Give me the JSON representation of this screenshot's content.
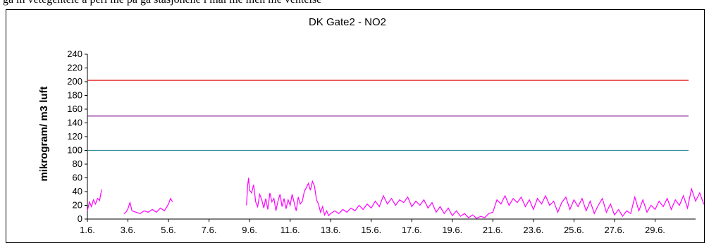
{
  "top_caption": "ga m vetegentele a peri me pa ga stasjonene i mai me men me ventelse",
  "chart_data": {
    "type": "line",
    "title": "DK Gate2 - NO2",
    "xlabel": "",
    "ylabel": "mikrogram/ m3 luft",
    "ylim": [
      0,
      240
    ],
    "yticks": [
      0,
      20,
      40,
      60,
      80,
      100,
      120,
      140,
      160,
      180,
      200,
      220,
      240
    ],
    "xlim": [
      1,
      31
    ],
    "xticks": [
      {
        "x": 1,
        "label": "1.6."
      },
      {
        "x": 3,
        "label": "3.6."
      },
      {
        "x": 5,
        "label": "5.6."
      },
      {
        "x": 7,
        "label": "7.6."
      },
      {
        "x": 9,
        "label": "9.6."
      },
      {
        "x": 11,
        "label": "11.6."
      },
      {
        "x": 13,
        "label": "13.6."
      },
      {
        "x": 15,
        "label": "15.6."
      },
      {
        "x": 17,
        "label": "17.6."
      },
      {
        "x": 19,
        "label": "19.6."
      },
      {
        "x": 21,
        "label": "21.6."
      },
      {
        "x": 23,
        "label": "23.6."
      },
      {
        "x": 25,
        "label": "25.6."
      },
      {
        "x": 27,
        "label": "27.6."
      },
      {
        "x": 29,
        "label": "29.6."
      }
    ],
    "grid": false,
    "reference_lines": [
      {
        "y": 202,
        "color": "#e02020"
      },
      {
        "y": 150,
        "color": "#8a1f9a"
      },
      {
        "y": 100,
        "color": "#2e8b9a"
      }
    ],
    "series": [
      {
        "color": "#ff00ff",
        "segments": [
          [
            [
              1.0,
              12
            ],
            [
              1.1,
              25
            ],
            [
              1.2,
              18
            ],
            [
              1.3,
              28
            ],
            [
              1.4,
              22
            ],
            [
              1.5,
              30
            ],
            [
              1.6,
              27
            ],
            [
              1.7,
              43
            ]
          ],
          [
            [
              2.8,
              8
            ],
            [
              2.9,
              10
            ],
            [
              3.0,
              15
            ],
            [
              3.1,
              24
            ],
            [
              3.2,
              12
            ],
            [
              3.4,
              10
            ],
            [
              3.6,
              8
            ],
            [
              3.8,
              12
            ],
            [
              4.0,
              10
            ],
            [
              4.2,
              14
            ],
            [
              4.4,
              10
            ],
            [
              4.6,
              16
            ],
            [
              4.8,
              12
            ],
            [
              5.0,
              22
            ],
            [
              5.1,
              30
            ],
            [
              5.2,
              25
            ]
          ],
          [
            [
              8.85,
              20
            ],
            [
              8.9,
              48
            ],
            [
              8.95,
              60
            ],
            [
              9.0,
              42
            ],
            [
              9.1,
              38
            ],
            [
              9.2,
              50
            ],
            [
              9.3,
              25
            ],
            [
              9.4,
              18
            ],
            [
              9.5,
              36
            ],
            [
              9.6,
              28
            ],
            [
              9.7,
              16
            ],
            [
              9.8,
              30
            ],
            [
              9.9,
              14
            ],
            [
              10.0,
              38
            ],
            [
              10.1,
              25
            ],
            [
              10.2,
              30
            ],
            [
              10.3,
              12
            ],
            [
              10.4,
              26
            ],
            [
              10.5,
              36
            ],
            [
              10.6,
              18
            ],
            [
              10.7,
              30
            ],
            [
              10.8,
              15
            ],
            [
              10.9,
              28
            ],
            [
              11.0,
              20
            ],
            [
              11.1,
              36
            ],
            [
              11.2,
              24
            ],
            [
              11.3,
              12
            ],
            [
              11.4,
              32
            ],
            [
              11.5,
              22
            ],
            [
              11.6,
              26
            ],
            [
              11.7,
              40
            ],
            [
              11.8,
              46
            ],
            [
              11.9,
              52
            ],
            [
              12.0,
              42
            ],
            [
              12.1,
              55
            ],
            [
              12.2,
              48
            ],
            [
              12.3,
              28
            ],
            [
              12.4,
              22
            ],
            [
              12.5,
              10
            ],
            [
              12.6,
              18
            ],
            [
              12.7,
              6
            ],
            [
              12.8,
              12
            ],
            [
              12.9,
              5
            ],
            [
              13.0,
              8
            ],
            [
              13.2,
              12
            ],
            [
              13.4,
              8
            ],
            [
              13.6,
              14
            ],
            [
              13.8,
              10
            ],
            [
              14.0,
              16
            ],
            [
              14.2,
              12
            ],
            [
              14.4,
              20
            ],
            [
              14.6,
              14
            ],
            [
              14.8,
              22
            ],
            [
              15.0,
              16
            ],
            [
              15.2,
              26
            ],
            [
              15.4,
              18
            ],
            [
              15.6,
              34
            ],
            [
              15.8,
              22
            ],
            [
              16.0,
              30
            ],
            [
              16.2,
              20
            ],
            [
              16.4,
              28
            ],
            [
              16.6,
              24
            ],
            [
              16.8,
              32
            ],
            [
              17.0,
              18
            ],
            [
              17.2,
              26
            ],
            [
              17.4,
              20
            ],
            [
              17.6,
              28
            ],
            [
              17.8,
              16
            ],
            [
              18.0,
              24
            ],
            [
              18.2,
              10
            ],
            [
              18.4,
              18
            ],
            [
              18.6,
              8
            ],
            [
              18.8,
              16
            ],
            [
              19.0,
              5
            ],
            [
              19.2,
              12
            ],
            [
              19.4,
              4
            ],
            [
              19.6,
              8
            ],
            [
              19.8,
              2
            ],
            [
              20.0,
              6
            ],
            [
              20.2,
              1
            ],
            [
              20.4,
              4
            ],
            [
              20.6,
              2
            ],
            [
              20.8,
              8
            ],
            [
              21.0,
              10
            ],
            [
              21.2,
              28
            ],
            [
              21.4,
              22
            ],
            [
              21.6,
              34
            ],
            [
              21.8,
              20
            ],
            [
              22.0,
              30
            ],
            [
              22.2,
              24
            ],
            [
              22.4,
              32
            ],
            [
              22.6,
              18
            ],
            [
              22.8,
              28
            ],
            [
              23.0,
              14
            ],
            [
              23.2,
              30
            ],
            [
              23.4,
              22
            ],
            [
              23.6,
              34
            ],
            [
              23.8,
              20
            ],
            [
              24.0,
              26
            ],
            [
              24.2,
              10
            ],
            [
              24.4,
              24
            ],
            [
              24.6,
              32
            ],
            [
              24.8,
              14
            ],
            [
              25.0,
              28
            ],
            [
              25.2,
              18
            ],
            [
              25.4,
              30
            ],
            [
              25.6,
              12
            ],
            [
              25.8,
              26
            ],
            [
              26.0,
              8
            ],
            [
              26.2,
              20
            ],
            [
              26.4,
              30
            ],
            [
              26.6,
              10
            ],
            [
              26.8,
              22
            ],
            [
              27.0,
              6
            ],
            [
              27.2,
              14
            ],
            [
              27.4,
              4
            ],
            [
              27.6,
              12
            ],
            [
              27.8,
              8
            ],
            [
              28.0,
              32
            ],
            [
              28.2,
              12
            ],
            [
              28.4,
              28
            ],
            [
              28.6,
              10
            ],
            [
              28.8,
              20
            ],
            [
              29.0,
              14
            ],
            [
              29.2,
              26
            ],
            [
              29.4,
              18
            ],
            [
              29.6,
              30
            ],
            [
              29.8,
              14
            ],
            [
              30.0,
              28
            ],
            [
              30.2,
              20
            ],
            [
              30.4,
              34
            ],
            [
              30.6,
              16
            ],
            [
              30.8,
              44
            ],
            [
              31.0,
              26
            ],
            [
              31.2,
              38
            ],
            [
              31.4,
              22
            ],
            [
              31.6,
              20
            ],
            [
              31.7,
              14
            ]
          ]
        ]
      }
    ]
  }
}
